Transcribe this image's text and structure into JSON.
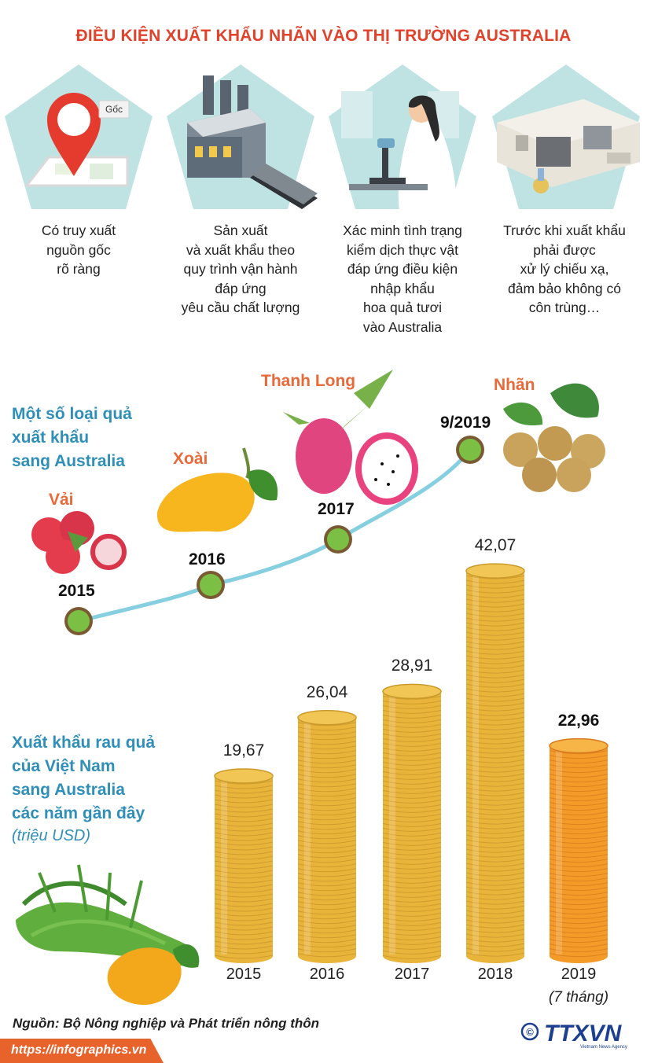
{
  "title": "ĐIỀU KIỆN XUẤT KHẨU NHÃN VÀO THỊ TRƯỜNG AUSTRALIA",
  "conditions": [
    {
      "icon": "location-pin-icon",
      "pin_label": "Gốc",
      "lines": [
        "Có truy xuất",
        "nguồn gốc",
        "rõ ràng"
      ]
    },
    {
      "icon": "factory-icon",
      "lines": [
        "Sản xuất",
        "và xuất khẩu theo",
        "quy trình vận hành",
        "đáp ứng",
        "yêu cầu chất lượng"
      ]
    },
    {
      "icon": "microscope-scientist-icon",
      "lines": [
        "Xác minh tình trạng",
        "kiểm dịch thực vật",
        "đáp ứng điều kiện",
        "nhập khẩu",
        "hoa quả tươi",
        "vào Australia"
      ]
    },
    {
      "icon": "irradiation-machine-icon",
      "lines": [
        "Trước khi xuất khẩu",
        "phải được",
        "xử lý chiếu xạ,",
        "đảm bảo không có",
        "côn trùng…"
      ]
    }
  ],
  "fruits_section": {
    "title_lines": [
      "Một số loại quả",
      "xuất khẩu",
      "sang Australia"
    ],
    "timeline": [
      {
        "year": "2015",
        "fruit": "Vải",
        "icon": "lychee-icon"
      },
      {
        "year": "2016",
        "fruit": "Xoài",
        "icon": "mango-icon"
      },
      {
        "year": "2017",
        "fruit": "Thanh Long",
        "icon": "dragon-fruit-icon"
      },
      {
        "year": "9/2019",
        "fruit": "Nhãn",
        "icon": "longan-icon"
      }
    ]
  },
  "exports_section": {
    "title_lines": [
      "Xuất khẩu rau quả",
      "của Việt Nam",
      "sang Australia",
      "các năm gần đây"
    ],
    "unit": "(triệu USD)"
  },
  "chart_data": {
    "type": "bar",
    "categories": [
      "2015",
      "2016",
      "2017",
      "2018",
      "2019"
    ],
    "category_notes": [
      "",
      "",
      "",
      "",
      "(7 tháng)"
    ],
    "values": [
      19.67,
      26.04,
      28.91,
      42.07,
      22.96
    ],
    "value_labels": [
      "19,67",
      "26,04",
      "28,91",
      "42,07",
      "22,96"
    ],
    "highlight_index": 4,
    "ylim": [
      0,
      45
    ],
    "colors": {
      "coin": "#e9b43a",
      "coin_highlight": "#f39a28"
    }
  },
  "source": "Nguồn: Bộ Nông nghiệp và Phát triển nông thôn",
  "footer": {
    "url": "https://infographics.vn"
  },
  "logo": {
    "copyright": "©",
    "name": "TTXVN",
    "sub": "Vietnam News Agency"
  },
  "colors": {
    "title": "#e0422b",
    "section_title": "#2f8fb8",
    "fruit_name": "#e96a39",
    "pentagon": "#bfe3e3",
    "timeline": "#86cfe0",
    "footer": "#e8632c"
  }
}
